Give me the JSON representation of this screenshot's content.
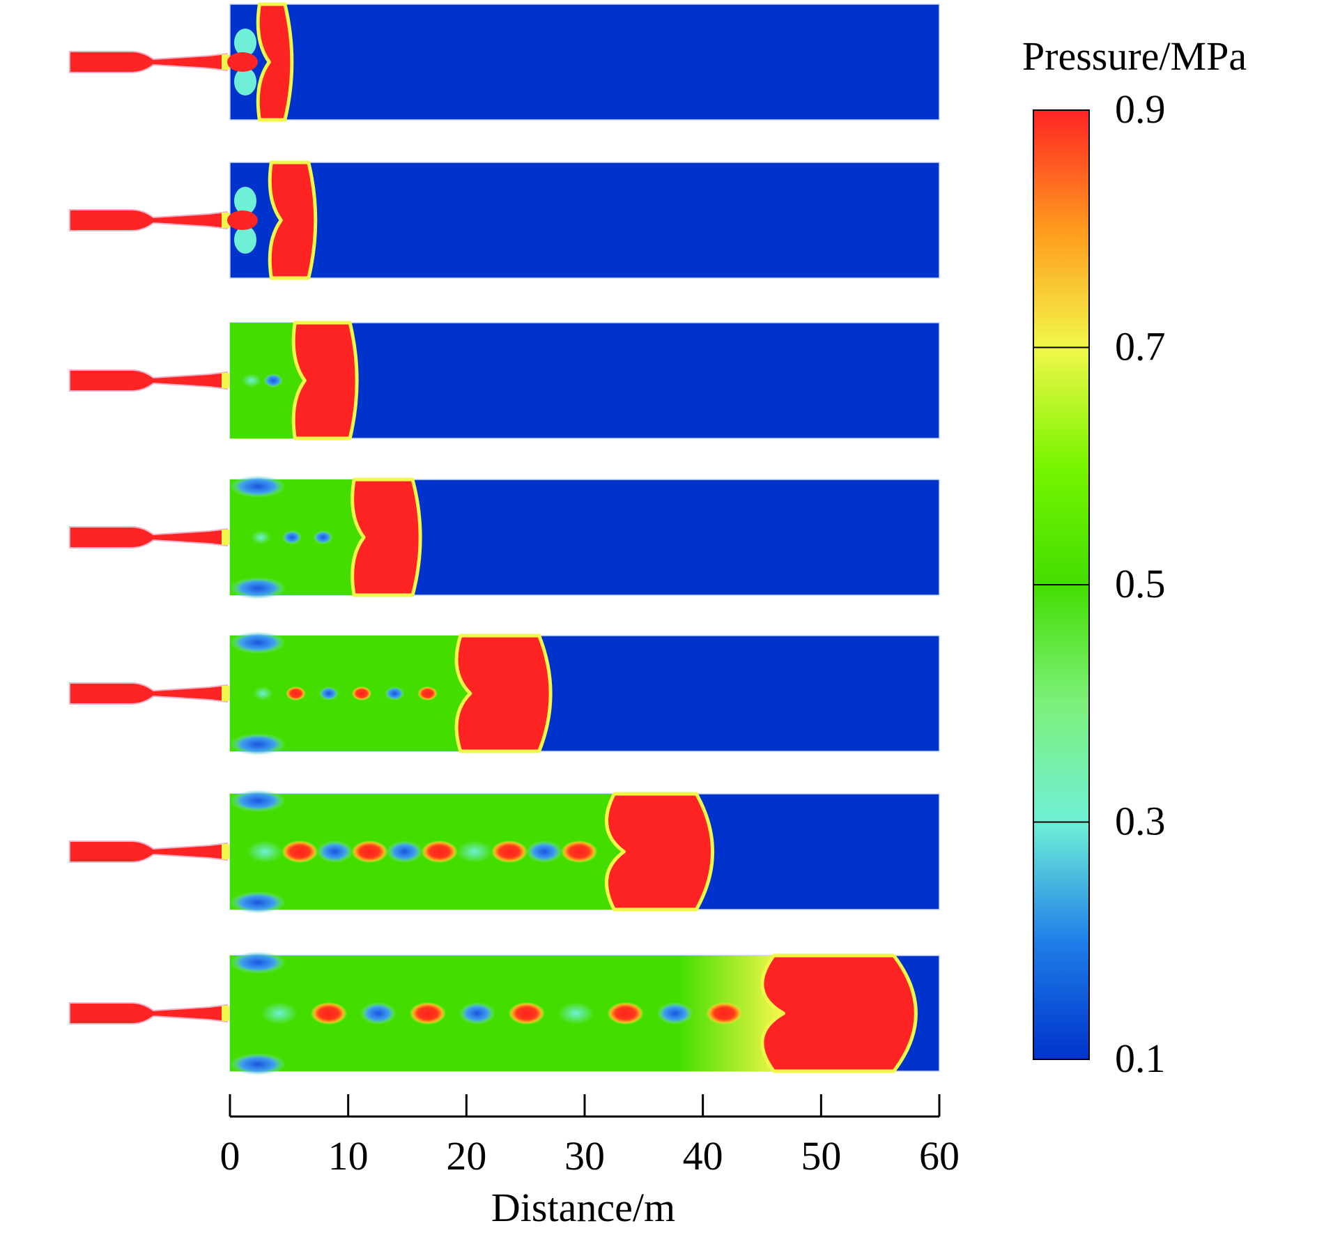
{
  "chart_data": {
    "type": "heatmap",
    "title": "",
    "xlabel": "Distance/m",
    "ylabel": "",
    "xlim": [
      0,
      60
    ],
    "x_ticks": [
      "0",
      "10",
      "20",
      "30",
      "40",
      "50",
      "60"
    ],
    "x_tick_values": [
      0,
      10,
      20,
      30,
      40,
      50,
      60
    ],
    "colorbar": {
      "label": "Pressure/MPa",
      "ticks": [
        "0.9",
        "0.7",
        "0.5",
        "0.3",
        "0.1"
      ],
      "tick_values": [
        0.9,
        0.7,
        0.5,
        0.3,
        0.1
      ],
      "range": [
        0.1,
        0.9
      ],
      "colors": [
        "#0033cc",
        "#1f7fe8",
        "#6ff0d6",
        "#7df07a",
        "#43de00",
        "#77f500",
        "#f2f74a",
        "#ff9a1e",
        "#ff2424"
      ]
    },
    "frames": [
      {
        "shock_front_m": 5.0,
        "high_pressure_start_m": 2.5,
        "ambient_mpa": 0.1,
        "peak_mpa": 0.9
      },
      {
        "shock_front_m": 7.0,
        "high_pressure_start_m": 3.5,
        "ambient_mpa": 0.1,
        "peak_mpa": 0.9
      },
      {
        "shock_front_m": 10.5,
        "high_pressure_start_m": 5.5,
        "ambient_mpa": 0.1,
        "peak_mpa": 0.9
      },
      {
        "shock_front_m": 15.8,
        "high_pressure_start_m": 10.5,
        "ambient_mpa": 0.1,
        "peak_mpa": 0.9
      },
      {
        "shock_front_m": 26.5,
        "high_pressure_start_m": 19.5,
        "ambient_mpa": 0.1,
        "peak_mpa": 0.9
      },
      {
        "shock_front_m": 39.8,
        "high_pressure_start_m": 32.5,
        "ambient_mpa": 0.1,
        "peak_mpa": 0.9
      },
      {
        "shock_front_m": 56.5,
        "high_pressure_start_m": 46.0,
        "ambient_mpa": 0.1,
        "peak_mpa": 0.9
      }
    ]
  }
}
